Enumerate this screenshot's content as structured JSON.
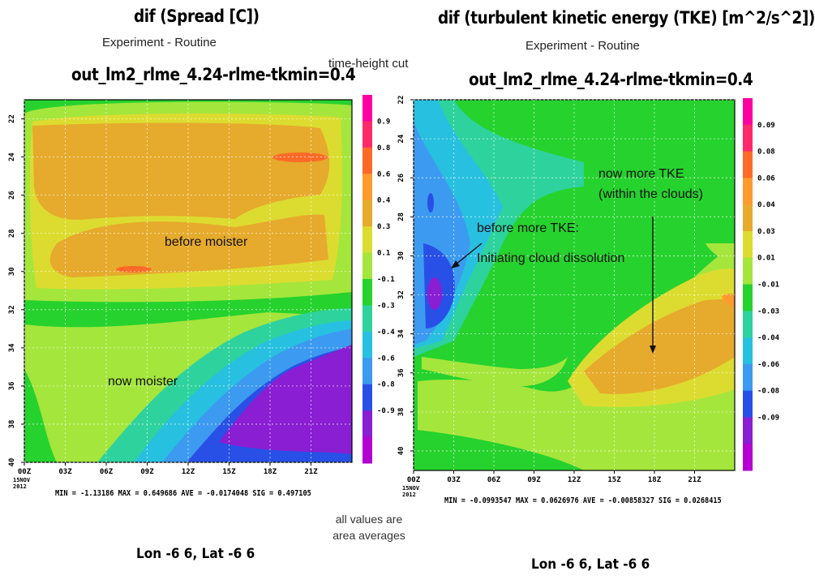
{
  "left": {
    "title": "dif (Spread [C])",
    "experiment": "Experiment - Routine",
    "run": "out_lm2_rlme_4.24-rlme-tkmin=0.4",
    "stats": "MIN = -1.13186  MAX = 0.649686  AVE = -0.0174048  SIG = 0.497105",
    "location": "Lon -6 6, Lat -6 6",
    "annotations": [
      "before moister",
      "now moister"
    ]
  },
  "right": {
    "title": "dif (turbulent kinetic energy (TKE) [m^2/s^2])",
    "experiment": "Experiment - Routine",
    "run": "out_lm2_rlme_4.24-rlme-tkmin=0.4",
    "stats": "MIN = -0.0993547  MAX = 0.0626976  AVE = -0.00858327  SIG = 0.0268415",
    "location": "Lon -6 6, Lat -6 6",
    "annotations": [
      "now more TKE",
      "(within the clouds)",
      "before more TKE:",
      "Initiating cloud dissolution"
    ]
  },
  "center_notes": {
    "cut": "time-height cut",
    "avg_line1": "all values are",
    "avg_line2": "area averages"
  },
  "chart_data": [
    {
      "type": "heatmap",
      "title": "dif (Spread [C])",
      "xlabel": "",
      "ylabel": "",
      "x_ticks": [
        "00Z",
        "03Z",
        "06Z",
        "09Z",
        "12Z",
        "15Z",
        "18Z",
        "21Z"
      ],
      "x_date_label": [
        "15NOV",
        "2012"
      ],
      "y_ticks": [
        "22",
        "24",
        "26",
        "28",
        "30",
        "32",
        "34",
        "36",
        "38",
        "40"
      ],
      "ylim": [
        21,
        40
      ],
      "colorbar_labels": [
        "0.9",
        "0.8",
        "0.6",
        "0.4",
        "0.3",
        "0.1",
        "-0.1",
        "-0.3",
        "-0.4",
        "-0.6",
        "-0.8",
        "-0.9"
      ],
      "colorbar_colors": [
        "#ff00a0",
        "#ff2a6a",
        "#ff6a28",
        "#ff9a2e",
        "#e6aa2c",
        "#dcdc30",
        "#a5e63c",
        "#26d22e",
        "#2ed29c",
        "#28c0e0",
        "#3c9af0",
        "#2850e6",
        "#8a1ed2",
        "#b400d2"
      ],
      "min": -1.13186,
      "max": 0.649686,
      "ave": -0.0174048,
      "sig": 0.497105
    },
    {
      "type": "heatmap",
      "title": "dif (turbulent kinetic energy (TKE) [m^2/s^2])",
      "xlabel": "",
      "ylabel": "",
      "x_ticks": [
        "00Z",
        "03Z",
        "06Z",
        "09Z",
        "12Z",
        "15Z",
        "18Z",
        "21Z"
      ],
      "x_date_label": [
        "15NOV",
        "2012"
      ],
      "y_ticks": [
        "22",
        "24",
        "26",
        "28",
        "30",
        "32",
        "34",
        "36",
        "38",
        "40"
      ],
      "ylim": [
        22,
        41
      ],
      "colorbar_labels": [
        "0.09",
        "0.08",
        "0.06",
        "0.04",
        "0.03",
        "0.01",
        "-0.01",
        "-0.03",
        "-0.04",
        "-0.06",
        "-0.08",
        "-0.09"
      ],
      "colorbar_colors": [
        "#ff00a0",
        "#ff2a6a",
        "#ff6a28",
        "#ff9a2e",
        "#e6aa2c",
        "#dcdc30",
        "#a5e63c",
        "#26d22e",
        "#2ed29c",
        "#28c0e0",
        "#3c9af0",
        "#2850e6",
        "#8a1ed2",
        "#b400d2"
      ],
      "min": -0.0993547,
      "max": 0.0626976,
      "ave": -0.00858327,
      "sig": 0.0268415
    }
  ]
}
